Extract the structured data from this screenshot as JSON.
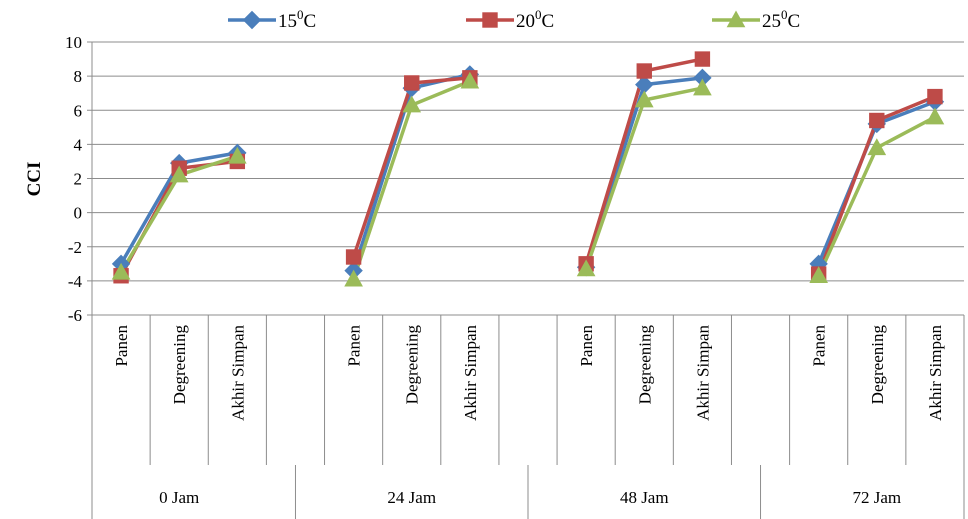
{
  "chart_data": {
    "type": "line",
    "title": "",
    "xlabel": "",
    "ylabel": "CCI",
    "ylim": [
      -6,
      10
    ],
    "y_ticks": [
      -6,
      -4,
      -2,
      0,
      2,
      4,
      6,
      8,
      10
    ],
    "grid": true,
    "legend_position": "top",
    "groups": [
      {
        "label": "0 Jam",
        "categories": [
          "Panen",
          "Degreening",
          "Akhir Simpan"
        ]
      },
      {
        "label": "24 Jam",
        "categories": [
          "Panen",
          "Degreening",
          "Akhir Simpan"
        ]
      },
      {
        "label": "48 Jam",
        "categories": [
          "Panen",
          "Degreening",
          "Akhir Simpan"
        ]
      },
      {
        "label": "72 Jam",
        "categories": [
          "Panen",
          "Degreening",
          "Akhir Simpan"
        ]
      }
    ],
    "series": [
      {
        "name": "15",
        "unit": "C",
        "color": "#4a7ebb",
        "marker": "diamond",
        "values": [
          [
            -3.0,
            2.9,
            3.5
          ],
          [
            -3.4,
            7.3,
            8.1
          ],
          [
            -3.2,
            7.5,
            7.9
          ],
          [
            -3.0,
            5.2,
            6.5
          ]
        ]
      },
      {
        "name": "20",
        "unit": "C",
        "color": "#be4b48",
        "marker": "square",
        "values": [
          [
            -3.7,
            2.6,
            3.0
          ],
          [
            -2.6,
            7.6,
            7.9
          ],
          [
            -3.0,
            8.3,
            9.0
          ],
          [
            -3.6,
            5.4,
            6.8
          ]
        ]
      },
      {
        "name": "25",
        "unit": "C",
        "color": "#9bbb59",
        "marker": "triangle",
        "values": [
          [
            -3.5,
            2.2,
            3.3
          ],
          [
            -3.9,
            6.3,
            7.7
          ],
          [
            -3.3,
            6.6,
            7.3
          ],
          [
            -3.7,
            3.8,
            5.6
          ]
        ]
      }
    ]
  }
}
